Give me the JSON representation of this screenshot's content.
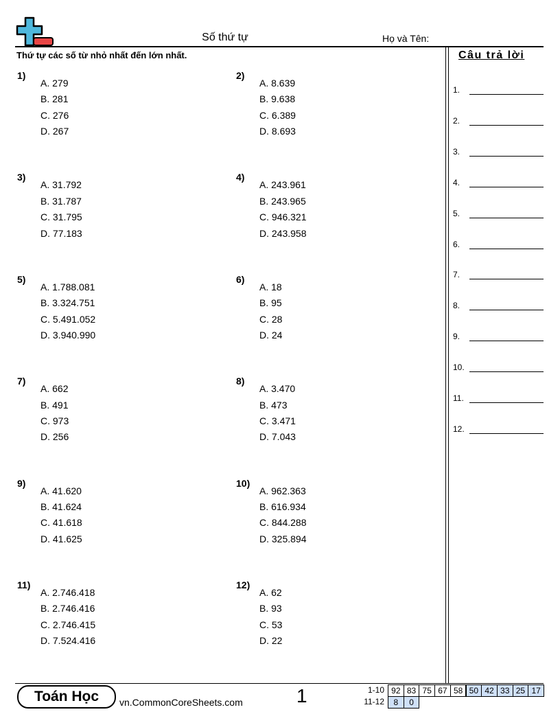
{
  "header": {
    "title": "Số thứ tự",
    "name_label": "Họ và Tên:",
    "instructions": "Thứ tự các số từ nhỏ nhất đến lớn nhất."
  },
  "answers": {
    "title": "Câu trả lời",
    "labels": [
      "1.",
      "2.",
      "3.",
      "4.",
      "5.",
      "6.",
      "7.",
      "8.",
      "9.",
      "10.",
      "11.",
      "12."
    ]
  },
  "problems": [
    {
      "num": "1)",
      "options": [
        "A. 279",
        "B. 281",
        "C. 276",
        "D. 267"
      ]
    },
    {
      "num": "2)",
      "options": [
        "A. 8.639",
        "B. 9.638",
        "C. 6.389",
        "D. 8.693"
      ]
    },
    {
      "num": "3)",
      "options": [
        "A. 31.792",
        "B. 31.787",
        "C. 31.795",
        "D. 77.183"
      ]
    },
    {
      "num": "4)",
      "options": [
        "A. 243.961",
        "B. 243.965",
        "C. 946.321",
        "D. 243.958"
      ]
    },
    {
      "num": "5)",
      "options": [
        "A. 1.788.081",
        "B. 3.324.751",
        "C. 5.491.052",
        "D. 3.940.990"
      ]
    },
    {
      "num": "6)",
      "options": [
        "A. 18",
        "B. 95",
        "C. 28",
        "D. 24"
      ]
    },
    {
      "num": "7)",
      "options": [
        "A. 662",
        "B. 491",
        "C. 973",
        "D. 256"
      ]
    },
    {
      "num": "8)",
      "options": [
        "A. 3.470",
        "B. 473",
        "C. 3.471",
        "D. 7.043"
      ]
    },
    {
      "num": "9)",
      "options": [
        "A. 41.620",
        "B. 41.624",
        "C. 41.618",
        "D. 41.625"
      ]
    },
    {
      "num": "10)",
      "options": [
        "A. 962.363",
        "B. 616.934",
        "C. 844.288",
        "D. 325.894"
      ]
    },
    {
      "num": "11)",
      "options": [
        "A. 2.746.418",
        "B. 2.746.416",
        "C. 2.746.415",
        "D. 7.524.416"
      ]
    },
    {
      "num": "12)",
      "options": [
        "A. 62",
        "B. 93",
        "C. 53",
        "D. 22"
      ]
    }
  ],
  "footer": {
    "brand": "Toán Học",
    "site": "vn.CommonCoreSheets.com",
    "page": "1",
    "score_rows": [
      {
        "label": "1-10",
        "cells": [
          "92",
          "83",
          "75",
          "67",
          "58",
          "50",
          "42",
          "33",
          "25",
          "17"
        ],
        "shaded_from": 5
      },
      {
        "label": "11-12",
        "cells": [
          "8",
          "0"
        ],
        "shaded_from": 0
      }
    ],
    "shade_color": "#cfe0f8"
  },
  "logo_colors": {
    "plus": "#4fb8dd",
    "minus": "#e84545"
  }
}
